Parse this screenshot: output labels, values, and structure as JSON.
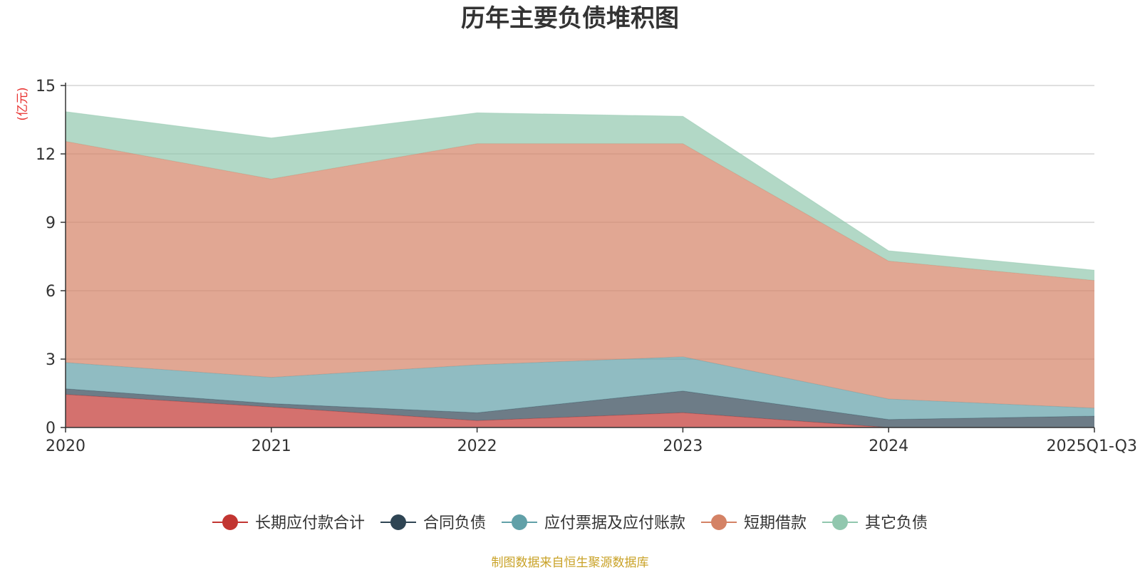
{
  "chart_data": {
    "type": "area",
    "stacked": true,
    "title": "历年主要负债堆积图",
    "ylabel": "亿元",
    "ylabel_display": "(亿元)",
    "ylim": [
      0,
      15
    ],
    "yticks": [
      0,
      3,
      6,
      9,
      12,
      15
    ],
    "ytick_labels": [
      "0",
      "3",
      "6",
      "9",
      "12",
      "15"
    ],
    "grid": true,
    "legend_position": "bottom",
    "categories": [
      "2020",
      "2021",
      "2022",
      "2023",
      "2024",
      "2025Q1-Q3"
    ],
    "series": [
      {
        "name": "长期应付款合计",
        "color": "#c23531",
        "values": [
          1.45,
          0.9,
          0.3,
          0.65,
          0.0,
          0.0
        ]
      },
      {
        "name": "合同负债",
        "color": "#2f4554",
        "values": [
          0.25,
          0.15,
          0.35,
          0.95,
          0.35,
          0.5
        ]
      },
      {
        "name": "应付票据及应付账款",
        "color": "#61a0a8",
        "values": [
          1.15,
          1.15,
          2.1,
          1.5,
          0.9,
          0.35
        ]
      },
      {
        "name": "短期借款",
        "color": "#d48265",
        "values": [
          9.7,
          8.7,
          9.7,
          9.35,
          6.05,
          5.6
        ]
      },
      {
        "name": "其它负债",
        "color": "#91c7ae",
        "values": [
          1.3,
          1.8,
          1.35,
          1.2,
          0.45,
          0.45
        ]
      }
    ]
  },
  "source_note": "制图数据来自恒生聚源数据库"
}
